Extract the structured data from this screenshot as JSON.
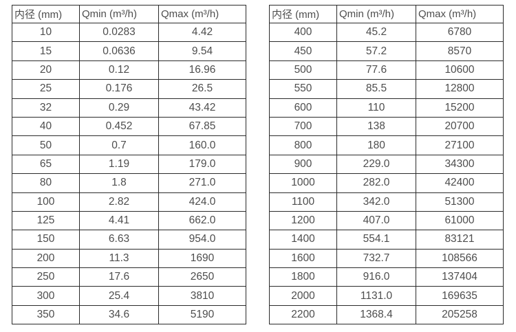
{
  "page": {
    "background": "#ffffff",
    "border_color": "#2a2a2a",
    "text_color": "#4d4d4d"
  },
  "chart_data": [
    {
      "type": "table",
      "title": "",
      "columns": [
        "内径 (mm)",
        "Qmin (m³/h)",
        "Qmax (m³/h)"
      ],
      "rows": [
        [
          "10",
          "0.0283",
          "4.42"
        ],
        [
          "15",
          "0.0636",
          "9.54"
        ],
        [
          "20",
          "0.12",
          "16.96"
        ],
        [
          "25",
          "0.176",
          "26.5"
        ],
        [
          "32",
          "0.29",
          "43.42"
        ],
        [
          "40",
          "0.452",
          "67.85"
        ],
        [
          "50",
          "0.7",
          "160.0"
        ],
        [
          "65",
          "1.19",
          "179.0"
        ],
        [
          "80",
          "1.8",
          "271.0"
        ],
        [
          "100",
          "2.82",
          "424.0"
        ],
        [
          "125",
          "4.41",
          "662.0"
        ],
        [
          "150",
          "6.63",
          "954.0"
        ],
        [
          "200",
          "11.3",
          "1690"
        ],
        [
          "250",
          "17.6",
          "2650"
        ],
        [
          "300",
          "25.4",
          "3810"
        ],
        [
          "350",
          "34.6",
          "5190"
        ]
      ]
    },
    {
      "type": "table",
      "title": "",
      "columns": [
        "内径 (mm)",
        "Qmin (m³/h)",
        "Qmax (m³/h)"
      ],
      "rows": [
        [
          "400",
          "45.2",
          "6780"
        ],
        [
          "450",
          "57.2",
          "8570"
        ],
        [
          "500",
          "77.6",
          "10600"
        ],
        [
          "550",
          "85.5",
          "12800"
        ],
        [
          "600",
          "110",
          "15200"
        ],
        [
          "700",
          "138",
          "20700"
        ],
        [
          "800",
          "180",
          "27100"
        ],
        [
          "900",
          "229.0",
          "34300"
        ],
        [
          "1000",
          "282.0",
          "42400"
        ],
        [
          "1100",
          "342.0",
          "51300"
        ],
        [
          "1200",
          "407.0",
          "61000"
        ],
        [
          "1400",
          "554.1",
          "83121"
        ],
        [
          "1600",
          "732.7",
          "108566"
        ],
        [
          "1800",
          "916.0",
          "137404"
        ],
        [
          "2000",
          "1131.0",
          "169635"
        ],
        [
          "2200",
          "1368.4",
          "205258"
        ]
      ]
    }
  ]
}
